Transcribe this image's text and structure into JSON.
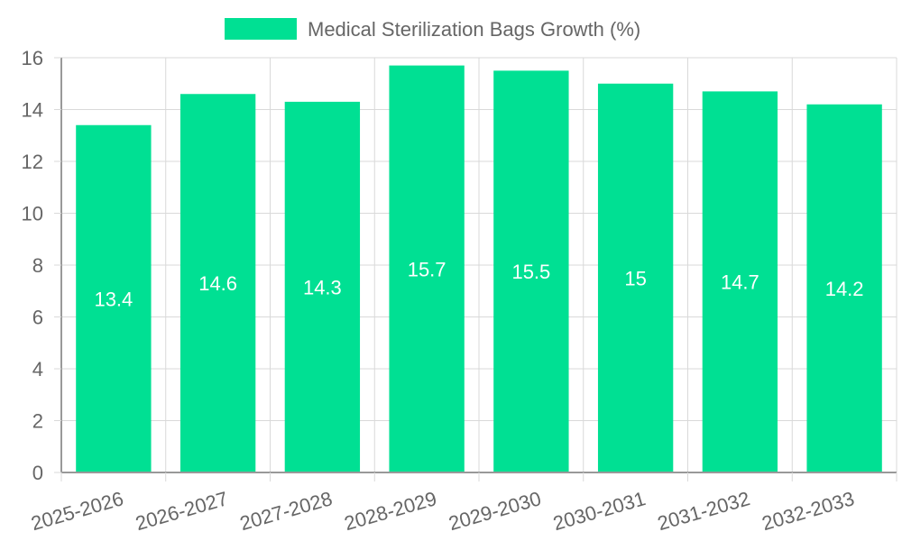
{
  "chart_data": {
    "type": "bar",
    "title": "",
    "legend": {
      "position": "top",
      "entries": [
        {
          "label": "Medical Sterilization Bags Growth (%)",
          "color": "#00e093"
        }
      ]
    },
    "categories": [
      "2025-2026",
      "2026-2027",
      "2027-2028",
      "2028-2029",
      "2029-2030",
      "2030-2031",
      "2031-2032",
      "2032-2033"
    ],
    "series": [
      {
        "name": "Medical Sterilization Bags Growth (%)",
        "values": [
          13.4,
          14.6,
          14.3,
          15.7,
          15.5,
          15,
          14.7,
          14.2
        ],
        "color": "#00e093"
      }
    ],
    "data_labels": [
      "13.4",
      "14.6",
      "14.3",
      "15.7",
      "15.5",
      "15",
      "14.7",
      "14.2"
    ],
    "xlabel": "",
    "ylabel": "",
    "ylim": [
      0,
      16
    ],
    "yticks": [
      "0",
      "2",
      "4",
      "6",
      "8",
      "10",
      "12",
      "14",
      "16"
    ],
    "grid": true,
    "colors": {
      "bar": "#00e093",
      "grid": "#d9d9d9",
      "axis": "#999999",
      "text": "#666666",
      "label": "#ffffff"
    }
  }
}
